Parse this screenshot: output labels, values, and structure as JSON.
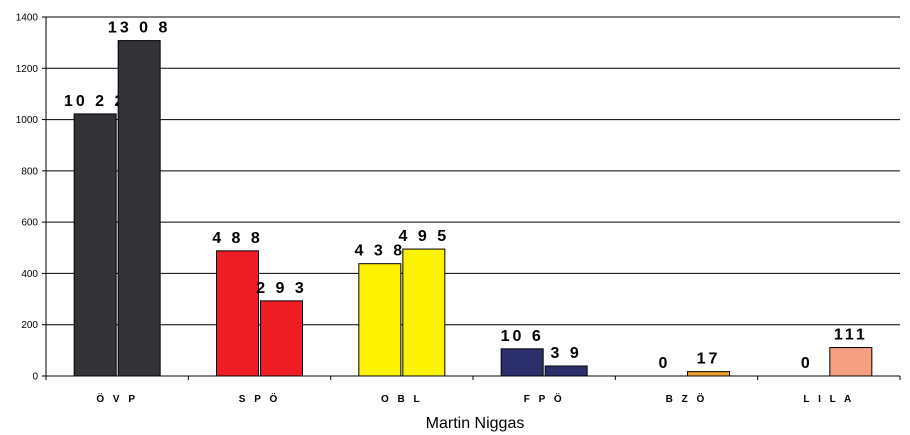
{
  "chart_data": {
    "type": "bar",
    "title": "",
    "xlabel": "Martin Niggas",
    "ylabel": "",
    "ylim": [
      0,
      1400
    ],
    "yticks": [
      0,
      200,
      400,
      600,
      800,
      1000,
      1200,
      1400
    ],
    "grid": true,
    "legend": "none",
    "categories": [
      "ÖVP",
      "SPÖ",
      "OBL",
      "FPÖ",
      "BZÖ",
      "LILA"
    ],
    "category_labels": [
      "Ö V P",
      "S P Ö",
      "O B L",
      "F P Ö",
      "B Z Ö",
      "L I L A"
    ],
    "colors": [
      "#333338",
      "#ee1c24",
      "#fff200",
      "#2b2f6b",
      "#f0a030",
      "#f5a080"
    ],
    "series": [
      {
        "values": [
          1022,
          488,
          438,
          106,
          0,
          0
        ],
        "labels": [
          "10 2 2",
          "4 8 8",
          "4 3 8",
          "10 6",
          "0",
          "0"
        ]
      },
      {
        "values": [
          1308,
          293,
          495,
          39,
          17,
          111
        ],
        "labels": [
          "13 0 8",
          "2 9 3",
          "4 9 5",
          "3 9",
          "17",
          "111"
        ]
      }
    ]
  }
}
